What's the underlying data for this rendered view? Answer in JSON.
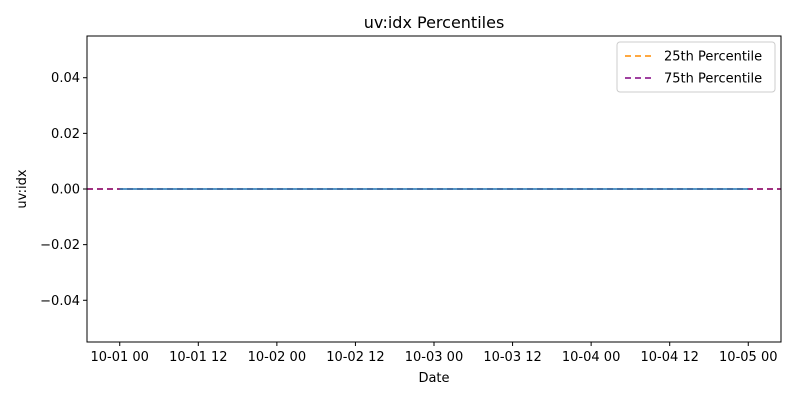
{
  "chart_data": {
    "type": "line",
    "title": "uv:idx Percentiles",
    "xlabel": "Date",
    "ylabel": "uv:idx",
    "x": [
      "10-01 00",
      "10-01 06",
      "10-01 12",
      "10-01 18",
      "10-02 00",
      "10-02 06",
      "10-02 12",
      "10-02 18",
      "10-03 00",
      "10-03 06",
      "10-03 12",
      "10-03 18",
      "10-04 00",
      "10-04 06",
      "10-04 12",
      "10-04 18",
      "10-05 00"
    ],
    "series": [
      {
        "name": "",
        "color": "#1f77b4",
        "style": "solid",
        "values": [
          0,
          0,
          0,
          0,
          0,
          0,
          0,
          0,
          0,
          0,
          0,
          0,
          0,
          0,
          0,
          0,
          0
        ]
      }
    ],
    "reference_lines": [
      {
        "name": "25th Percentile",
        "color": "#ff8c00",
        "style": "dashed",
        "value": 0.0
      },
      {
        "name": "75th Percentile",
        "color": "#800080",
        "style": "dashed",
        "value": 0.0
      }
    ],
    "xticks": [
      "10-01 00",
      "10-01 12",
      "10-02 00",
      "10-02 12",
      "10-03 00",
      "10-03 12",
      "10-04 00",
      "10-04 12",
      "10-05 00"
    ],
    "yticks": [
      "0.04",
      "0.02",
      "0.00",
      "−0.02",
      "−0.04"
    ],
    "ytick_values": [
      0.04,
      0.02,
      0.0,
      -0.02,
      -0.04
    ],
    "ylim": [
      -0.055,
      0.055
    ],
    "xlim_hours": [
      -5,
      101
    ],
    "grid": false,
    "legend_position": "top-right"
  }
}
